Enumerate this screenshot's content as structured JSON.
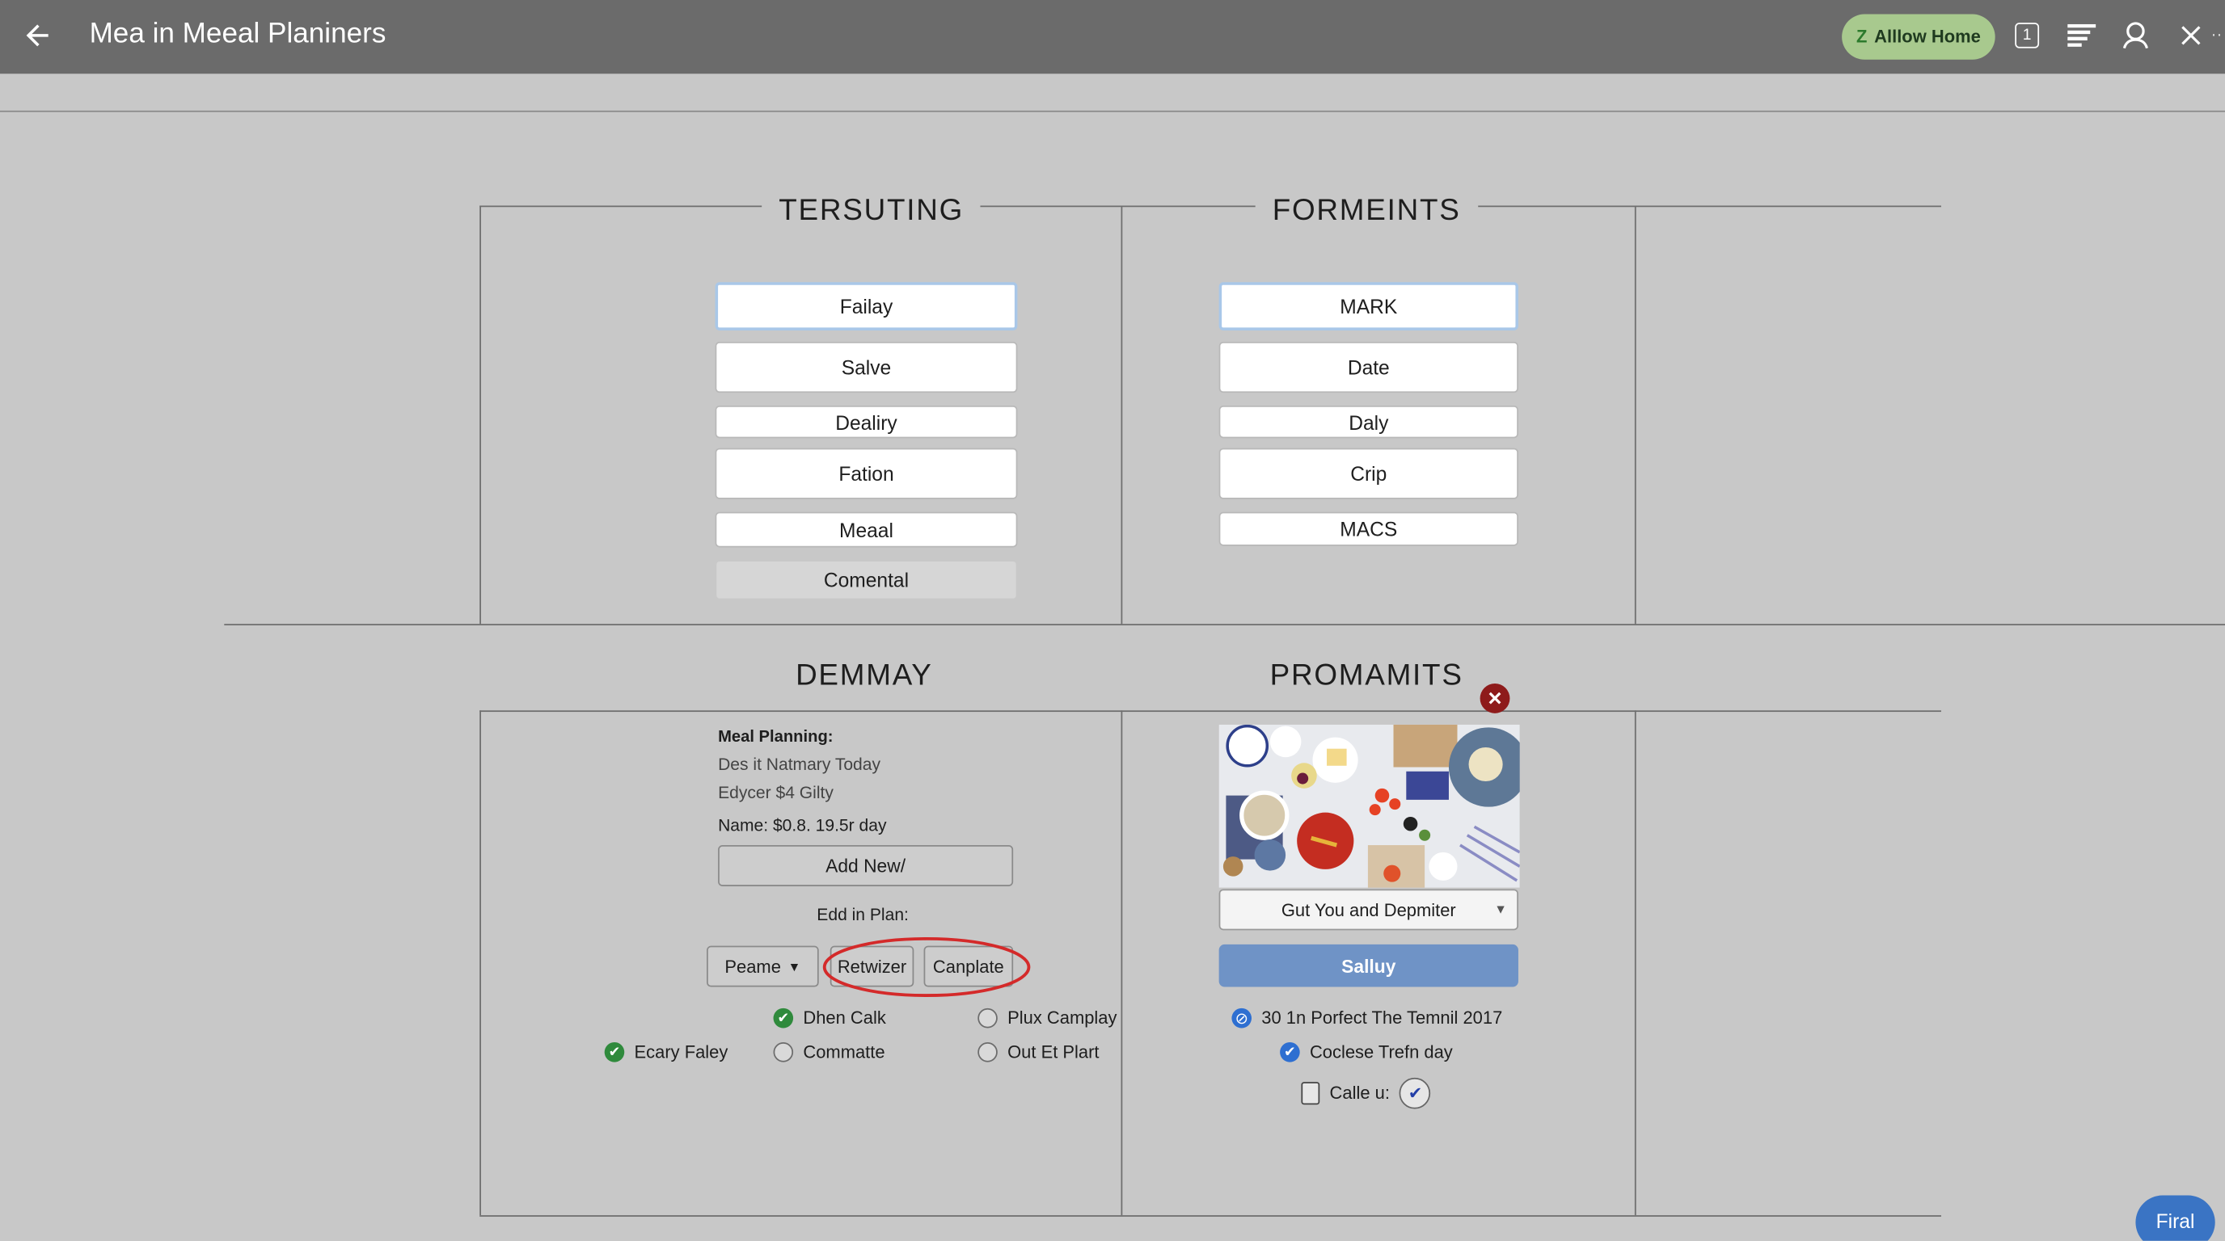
{
  "header": {
    "title": "Mea in Meeal Planiners",
    "allow_home": "Alllow Home",
    "badge_count": "1"
  },
  "sections": {
    "tersuting": {
      "title": "TERSUTING",
      "options": [
        "Failay",
        "Salve",
        "Dealiry",
        "Fation",
        "Meaal",
        "Comental"
      ]
    },
    "formeints": {
      "title": "FORMEINTS",
      "options": [
        "MARK",
        "Date",
        "Daly",
        "Crip",
        "MACS"
      ]
    },
    "demmay": {
      "title": "DEMMAY",
      "heading": "Meal Planning:",
      "line1": "Des it Natmary Today",
      "line2": "Edycer $4 Gilty",
      "name_line": "Name: $0.8. 19.5r day",
      "add_new": "Add New/",
      "edd_label": "Edd in Plan:",
      "peame": "Peame",
      "retwizer": "Retwizer",
      "canplate": "Canplate",
      "checks": [
        {
          "label": "Dhen Calk",
          "checked": true
        },
        {
          "label": "Plux Camplay",
          "checked": false
        },
        {
          "label": "Ecary Faley",
          "checked": true
        },
        {
          "label": "Commatte",
          "checked": false
        },
        {
          "label": "Out Et Plart",
          "checked": false
        }
      ]
    },
    "promamits": {
      "title": "PROMAMITS",
      "dropdown": "Gut You and Depmiter",
      "button": "Salluy",
      "checks": [
        {
          "label": "30 1n Porfect The Temnil 2017",
          "checked": true
        },
        {
          "label": "Coclese Trefn day",
          "checked": true
        },
        {
          "label": "Calle u:",
          "checked": false
        }
      ]
    }
  },
  "fab": "Firal",
  "colors": {
    "topbar": "#6b6b6b",
    "allow_home_bg": "#a8c98e",
    "primary_button": "#6f93c6",
    "highlight_ring": "#d42a2a",
    "fab": "#3a74c4"
  }
}
